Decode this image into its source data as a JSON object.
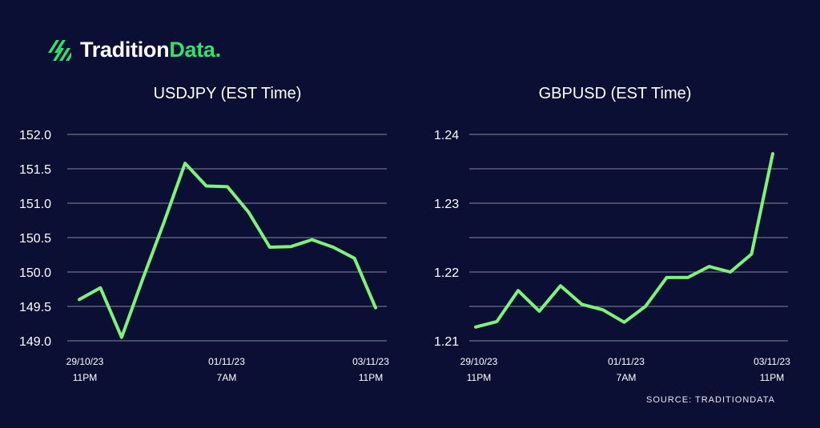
{
  "brand": {
    "name_part1": "Tradition",
    "name_part2": "Data.",
    "icon": "tradition-data-logo-icon"
  },
  "source": "SOURCE: TRADITIONDATA",
  "colors": {
    "background": "#0b0f33",
    "line": "#7ff27a",
    "grid": "#c9ccd8",
    "brand_green": "#34e06a"
  },
  "chart_data": [
    {
      "type": "line",
      "title": "USDJPY (EST Time)",
      "ylim": [
        149.0,
        152.0
      ],
      "yticks": [
        "152.0",
        "151.5",
        "151.0",
        "150.5",
        "150.0",
        "149.5",
        "149.0"
      ],
      "xticks": [
        {
          "date": "29/10/23",
          "time": "11PM"
        },
        {
          "date": "01/11/23",
          "time": "7AM"
        },
        {
          "date": "03/11/23",
          "time": "11PM"
        }
      ],
      "grid": true,
      "series": [
        {
          "values": [
            149.6,
            149.77,
            149.05,
            149.9,
            150.72,
            151.58,
            151.25,
            151.24,
            150.87,
            150.36,
            150.37,
            150.47,
            150.36,
            150.2,
            149.48
          ]
        }
      ]
    },
    {
      "type": "line",
      "title": "GBPUSD (EST Time)",
      "ylim": [
        1.21,
        1.24
      ],
      "yticks": [
        "1.24",
        "1.23",
        "1.22",
        "1.21"
      ],
      "xticks": [
        {
          "date": "29/10/23",
          "time": "11PM"
        },
        {
          "date": "01/11/23",
          "time": "7AM"
        },
        {
          "date": "03/11/23",
          "time": "11PM"
        }
      ],
      "grid": true,
      "series": [
        {
          "values": [
            1.212,
            1.2128,
            1.2173,
            1.2143,
            1.218,
            1.2153,
            1.2145,
            1.2127,
            1.215,
            1.2192,
            1.2192,
            1.2208,
            1.22,
            1.2226,
            1.2372
          ]
        }
      ]
    }
  ]
}
